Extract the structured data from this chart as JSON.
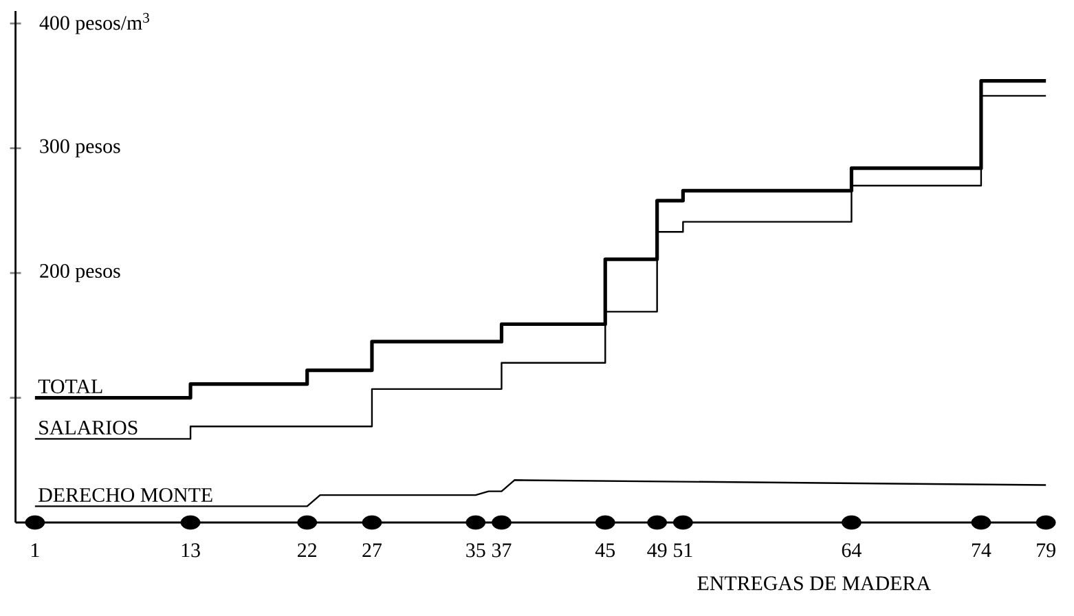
{
  "chart_data": {
    "type": "step",
    "xlabel": "ENTREGAS DE MADERA",
    "xlim": [
      -0.5,
      79.5
    ],
    "ylim": [
      0,
      410
    ],
    "xticks": [
      1,
      13,
      22,
      27,
      35,
      37,
      45,
      49,
      51,
      64,
      74,
      79
    ],
    "yticks": [
      {
        "value": 100,
        "label": null
      },
      {
        "value": 200,
        "label": "200 pesos"
      },
      {
        "value": 300,
        "label": "300 pesos"
      },
      {
        "value": 400,
        "label": "400 pesos/m$^{3}$"
      }
    ],
    "series": [
      {
        "name": "TOTAL",
        "color": "#000000",
        "x": [
          1,
          13,
          22,
          27,
          37,
          45,
          49,
          51,
          64,
          74,
          79
        ],
        "values": [
          100,
          111,
          122,
          145,
          159,
          211,
          258,
          266,
          284,
          354,
          354
        ]
      },
      {
        "name": "SALARIOS",
        "color": "#000000",
        "x": [
          1,
          13,
          27,
          37,
          45,
          49,
          51,
          64,
          74,
          79
        ],
        "values": [
          67,
          77,
          107,
          128,
          169,
          233,
          241,
          270,
          342,
          342
        ]
      },
      {
        "name": "DERECHO MONTE",
        "type": "line",
        "color": "#000000",
        "x": [
          1,
          22,
          23,
          35,
          36,
          37,
          38,
          79
        ],
        "values": [
          13,
          13,
          22,
          22,
          25,
          25,
          34,
          30
        ]
      },
      {
        "type": "scatter",
        "marker": "circle",
        "color": "#000000",
        "x": [
          1,
          13,
          22,
          27,
          35,
          37,
          45,
          49,
          51,
          64,
          74,
          79
        ],
        "values": [
          0,
          0,
          0,
          0,
          0,
          0,
          0,
          0,
          0,
          0,
          0,
          0
        ]
      }
    ]
  }
}
